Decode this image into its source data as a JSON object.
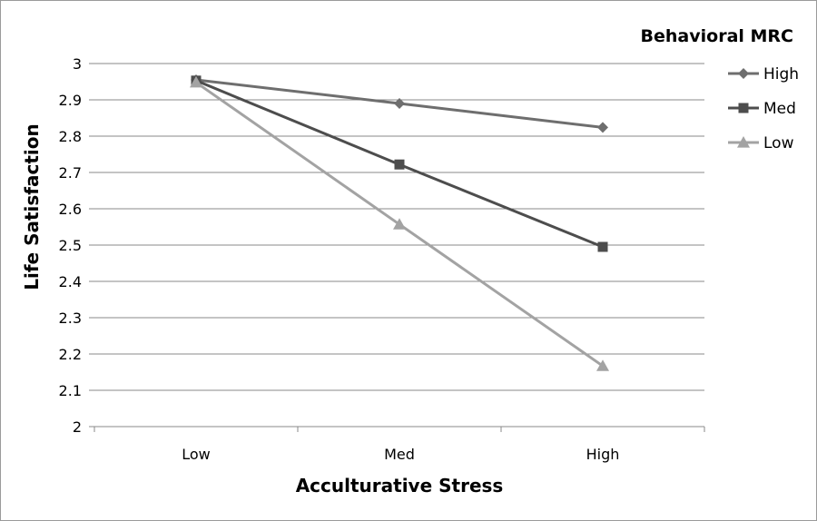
{
  "chart_data": {
    "type": "line",
    "categories": [
      "Low",
      "Med",
      "High"
    ],
    "xlabel": "Acculturative Stress",
    "ylabel": "Life Satisfaction",
    "ylim": [
      2,
      3
    ],
    "yticks": [
      "2",
      "2.1",
      "2.2",
      "2.3",
      "2.4",
      "2.5",
      "2.6",
      "2.7",
      "2.8",
      "2.9",
      "3"
    ],
    "grid": true,
    "legend": {
      "title": "Behavioral MRC",
      "position": "right"
    },
    "series": [
      {
        "name": "High",
        "values": [
          2.955,
          2.89,
          2.824
        ],
        "color": "#6e6e6e",
        "marker": "diamond"
      },
      {
        "name": "Med",
        "values": [
          2.953,
          2.722,
          2.495
        ],
        "color": "#4d4d4d",
        "marker": "square"
      },
      {
        "name": "Low",
        "values": [
          2.948,
          2.557,
          2.167
        ],
        "color": "#a3a3a3",
        "marker": "triangle"
      }
    ]
  }
}
